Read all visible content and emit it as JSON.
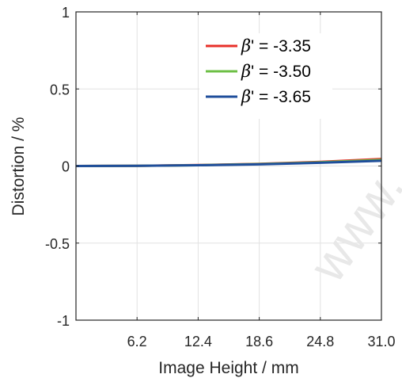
{
  "chart_data": {
    "type": "line",
    "xlabel": "Image Height / mm",
    "ylabel": "Distortion / %",
    "xlim": [
      0,
      31.0
    ],
    "ylim": [
      -1,
      1
    ],
    "xticks": [
      6.2,
      12.4,
      18.6,
      24.8,
      31.0
    ],
    "xtick_labels": [
      "6.2",
      "12.4",
      "18.6",
      "24.8",
      "31.0"
    ],
    "yticks": [
      -1,
      -0.5,
      0,
      0.5,
      1
    ],
    "ytick_labels": [
      "-1",
      "-0.5",
      "0",
      "0.5",
      "1"
    ],
    "grid": true,
    "legend_position": "top-right",
    "watermark": "www.",
    "series": [
      {
        "name": "β' = -3.35",
        "symbol": "β",
        "suffix": "' = -3.35",
        "color": "#e8302a",
        "x": [
          0,
          6.2,
          12.4,
          18.6,
          24.8,
          31.0
        ],
        "y": [
          0,
          0.001,
          0.006,
          0.014,
          0.027,
          0.046
        ]
      },
      {
        "name": "β' = -3.50",
        "symbol": "β",
        "suffix": "' = -3.50",
        "color": "#6dbf45",
        "x": [
          0,
          6.2,
          12.4,
          18.6,
          24.8,
          31.0
        ],
        "y": [
          0,
          0.001,
          0.005,
          0.013,
          0.024,
          0.04
        ]
      },
      {
        "name": "β' = -3.65",
        "symbol": "β",
        "suffix": "' = -3.65",
        "color": "#1f4e9b",
        "x": [
          0,
          6.2,
          12.4,
          18.6,
          24.8,
          31.0
        ],
        "y": [
          0,
          0.001,
          0.005,
          0.011,
          0.021,
          0.034
        ]
      }
    ]
  }
}
